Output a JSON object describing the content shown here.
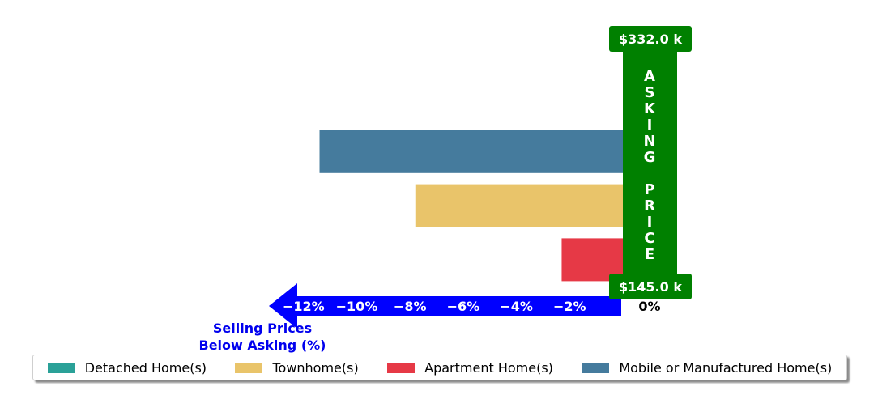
{
  "chart_data": {
    "type": "bar",
    "orientation": "horizontal",
    "x_axis_caption": "Selling Prices\nBelow Asking (%)",
    "xticks": [
      "−12%",
      "−10%",
      "−8%",
      "−6%",
      "−4%",
      "−2%"
    ],
    "zero_label": "0%",
    "xlim": [
      -13.1,
      2.2
    ],
    "asking_banner": {
      "text": "ASKING PRICE",
      "top_label": "$332.0 k",
      "bottom_label": "$145.0 k",
      "color": "#008000"
    },
    "bars": [
      {
        "name": "Detached Home(s)",
        "value": 0.2,
        "color": "#2aa198"
      },
      {
        "name": "Mobile or Manufactured Home(s)",
        "value": -11.4,
        "color": "#457b9d"
      },
      {
        "name": "Townhome(s)",
        "value": -7.8,
        "color": "#e9c46a"
      },
      {
        "name": "Apartment Home(s)",
        "value": -2.3,
        "color": "#e63946"
      }
    ],
    "arrow_color": "#0000ff",
    "caption_color": "#0000ee"
  },
  "legend": [
    {
      "label": "Detached Home(s)",
      "color": "#2aa198"
    },
    {
      "label": "Townhome(s)",
      "color": "#e9c46a"
    },
    {
      "label": "Apartment Home(s)",
      "color": "#e63946"
    },
    {
      "label": "Mobile or Manufactured Home(s)",
      "color": "#457b9d"
    }
  ]
}
